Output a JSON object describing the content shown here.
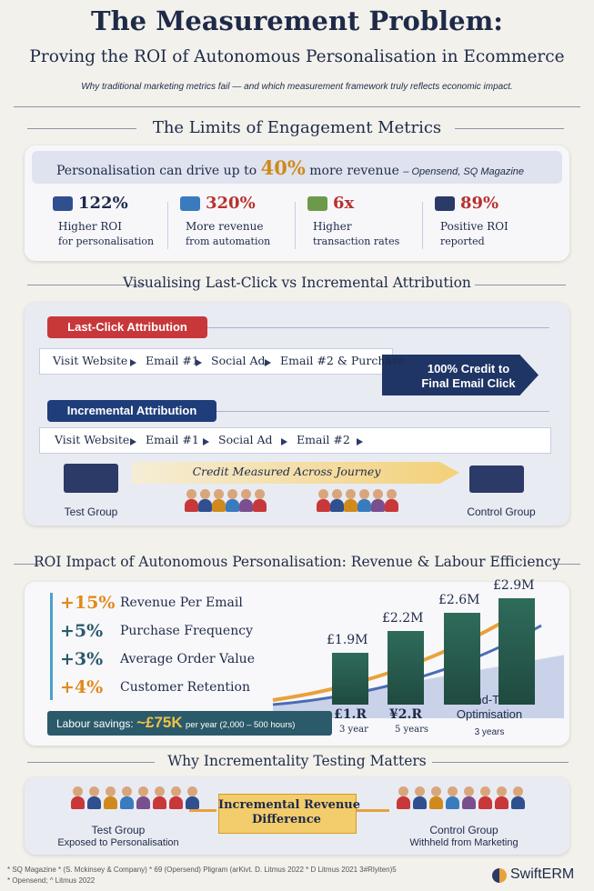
{
  "header": {
    "title": "The Measurement Problem:",
    "subtitle": "Proving the ROI of Autonomous Personalisation in Ecommerce",
    "tagline": "Why traditional marketing metrics fail — and which measurement framework truly reflects economic impact."
  },
  "engagement": {
    "heading": "The Limits of Engagement Metrics",
    "banner": {
      "lead": "Personalisation can drive up to",
      "figure": "40%",
      "rest": "more revenue",
      "source": "– Opensend, SQ Magazine"
    },
    "stats": [
      {
        "value": "122%",
        "label": "Higher ROI",
        "sub": "for personalisation"
      },
      {
        "value": "320%",
        "label": "More revenue",
        "sub": "from automation"
      },
      {
        "value": "6x",
        "label": "Higher",
        "sub": "transaction rates"
      },
      {
        "value": "89%",
        "label": "Positive ROI",
        "sub": "reported"
      }
    ]
  },
  "attribution": {
    "heading": "Visualising Last-Click vs Incremental Attribution",
    "last_click": {
      "label": "Last-Click Attribution",
      "steps": [
        "Visit Website",
        "Email #1",
        "Social Ad",
        "Email #2 & Purchase"
      ],
      "result": [
        "100% Credit to",
        "Final Email Click"
      ]
    },
    "incremental": {
      "label": "Incremental Attribution",
      "steps": [
        "Visit Website",
        "Email #1",
        "Social Ad",
        "Email #2"
      ],
      "journey": "Credit Measured Across Journey",
      "test": "Test Group",
      "control": "Control Group"
    }
  },
  "roi": {
    "heading": "ROI Impact of Autonomous Personalisation: Revenue & Labour Efficiency",
    "metrics": [
      {
        "value": "+15%",
        "label": "Revenue Per Email"
      },
      {
        "value": "+5%",
        "label": "Purchase Frequency"
      },
      {
        "value": "+3%",
        "label": "Average Order Value"
      },
      {
        "value": "+4%",
        "label": "Customer Retention"
      }
    ],
    "bars": [
      {
        "value": "£1.9M",
        "base": "£1.R",
        "period": "3 year"
      },
      {
        "value": "£2.2M",
        "base": "¥2.R",
        "period": "5 years"
      },
      {
        "value": "£2.6M"
      },
      {
        "value": "£2.9M"
      }
    ],
    "labour": {
      "lead": "Labour savings:",
      "figure": "~£75K",
      "rest": "per year (2,000 – 500 hours)"
    },
    "send_time": {
      "label": [
        "Send-Time",
        "Optimisation"
      ],
      "period": "3 years"
    }
  },
  "testing": {
    "heading": "Why Incrementality Testing Matters",
    "test": {
      "title": "Test Group",
      "sub": "Exposed to Personalisation"
    },
    "center": [
      "Incremental Revenue",
      "Difference"
    ],
    "control": {
      "title": "Control Group",
      "sub": "Withheld from Marketing"
    }
  },
  "footer": {
    "notes": [
      "* SQ Magazine  * (S. Mckinsey & Company)  * 69 (Opersend)  Pligram (arKivt. D. Litmus 2022  * D Litmus 2021  3#Rlyiten)5",
      "* Opensend; ^ Litmus 2022"
    ],
    "brand": "SwiftERM"
  }
}
